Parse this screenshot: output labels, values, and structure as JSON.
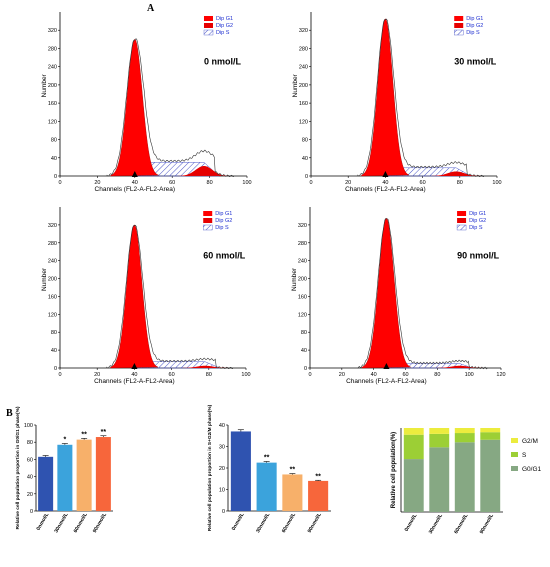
{
  "panel_labels": {
    "A": "A",
    "B": "B"
  },
  "colors": {
    "g1": "#ff0000",
    "g2": "#e60000",
    "s_hatch": "#4a55c8",
    "legend_text": "#1f2fd0",
    "bar1": "#2f53b0",
    "bar2": "#3ba3dc",
    "bar3": "#f7b06a",
    "bar4": "#f7663b",
    "stack_g0g1": "#86a883",
    "stack_s": "#9ccf35",
    "stack_g2m": "#ecec3e"
  },
  "chart_data": [
    {
      "type": "area",
      "panel": "0 nmol/L",
      "title": "0 nmol/L",
      "xlabel": "Channels (FL2-A-FL2-Area)",
      "ylabel": "Number",
      "xlim": [
        0,
        100
      ],
      "ylim": [
        0,
        360
      ],
      "xticks": [
        "0",
        "20",
        "40",
        "60",
        "80",
        "100"
      ],
      "yticks": [
        "0",
        "40",
        "80",
        "120",
        "160",
        "200",
        "240",
        "280",
        "320"
      ],
      "legend": [
        "Dip G1",
        "Dip G2",
        "Dip S"
      ],
      "g1_peak": {
        "center": 40,
        "height": 300
      },
      "g2_peak": {
        "center": 77,
        "height": 22
      },
      "s_level": 30,
      "marker_x": 40
    },
    {
      "type": "area",
      "panel": "30 nmol/L",
      "title": "30 nmol/L",
      "xlabel": "Channels (FL2-A-FL2-Area)",
      "ylabel": "Number",
      "xlim": [
        0,
        100
      ],
      "ylim": [
        0,
        360
      ],
      "xticks": [
        "0",
        "20",
        "40",
        "60",
        "80",
        "100"
      ],
      "yticks": [
        "0",
        "40",
        "80",
        "120",
        "160",
        "200",
        "240",
        "280",
        "320"
      ],
      "legend": [
        "Dip G1",
        "Dip G2",
        "Dip S"
      ],
      "g1_peak": {
        "center": 40,
        "height": 345
      },
      "g2_peak": {
        "center": 78,
        "height": 10
      },
      "s_level": 18,
      "marker_x": 40
    },
    {
      "type": "area",
      "panel": "60 nmol/L",
      "title": "60 nmol/L",
      "xlabel": "Channels (FL2-A-FL2-Area)",
      "ylabel": "Number",
      "xlim": [
        0,
        100
      ],
      "ylim": [
        0,
        360
      ],
      "xticks": [
        "0",
        "20",
        "40",
        "60",
        "80",
        "100"
      ],
      "yticks": [
        "0",
        "40",
        "80",
        "120",
        "160",
        "200",
        "240",
        "280",
        "320"
      ],
      "legend": [
        "Dip G1",
        "Dip G2",
        "Dip S"
      ],
      "g1_peak": {
        "center": 40,
        "height": 320
      },
      "g2_peak": {
        "center": 78,
        "height": 5
      },
      "s_level": 14,
      "marker_x": 40
    },
    {
      "type": "area",
      "panel": "90 nmol/L",
      "title": "90 nmol/L",
      "xlabel": "Channels (FL2-A-FL2-Area)",
      "ylabel": "Number",
      "xlim": [
        0,
        120
      ],
      "ylim": [
        0,
        360
      ],
      "xticks": [
        "0",
        "20",
        "40",
        "60",
        "80",
        "100",
        "120"
      ],
      "yticks": [
        "0",
        "40",
        "80",
        "120",
        "160",
        "200",
        "240",
        "280",
        "320"
      ],
      "legend": [
        "Dip G1",
        "Dip G2",
        "Dip S"
      ],
      "g1_peak": {
        "center": 48,
        "height": 335
      },
      "g2_peak": {
        "center": 94,
        "height": 5
      },
      "s_level": 10,
      "marker_x": 48
    },
    {
      "type": "bar",
      "ylabel": "Relative cell population proportion in G0/G1 phase(%)",
      "ylim": [
        0,
        100
      ],
      "yticks": [
        "0",
        "20",
        "40",
        "60",
        "80",
        "100"
      ],
      "categories": [
        "0nmol/L",
        "30nmol/L",
        "60nmol/L",
        "90nmol/L"
      ],
      "values": [
        63,
        77,
        83,
        86
      ],
      "errors": [
        1.5,
        1.5,
        1.5,
        1.5
      ],
      "significance": [
        "",
        "*",
        "**",
        "**"
      ]
    },
    {
      "type": "bar",
      "ylabel": "Relative cell population proportion in S+G2/M phase(%)",
      "ylim": [
        0,
        40
      ],
      "yticks": [
        "0",
        "10",
        "20",
        "30",
        "40"
      ],
      "categories": [
        "0nmol/L",
        "30nmol/L",
        "60nmol/L",
        "90nmol/L"
      ],
      "values": [
        37,
        22.5,
        17,
        14
      ],
      "errors": [
        0.8,
        0.5,
        0.4,
        0.3
      ],
      "significance": [
        "",
        "**",
        "**",
        "**"
      ]
    },
    {
      "type": "bar",
      "stacked": true,
      "ylabel": "Relative cell population(%)",
      "ylim": [
        0,
        100
      ],
      "categories": [
        "0nmol/L",
        "30nmol/L",
        "60nmol/L",
        "90nmol/L"
      ],
      "series": [
        {
          "name": "G0/G1",
          "values": [
            63,
            77,
            83,
            86
          ]
        },
        {
          "name": "S",
          "values": [
            29,
            16,
            11,
            9
          ]
        },
        {
          "name": "G2/M",
          "values": [
            8,
            7,
            6,
            5
          ]
        }
      ]
    }
  ]
}
